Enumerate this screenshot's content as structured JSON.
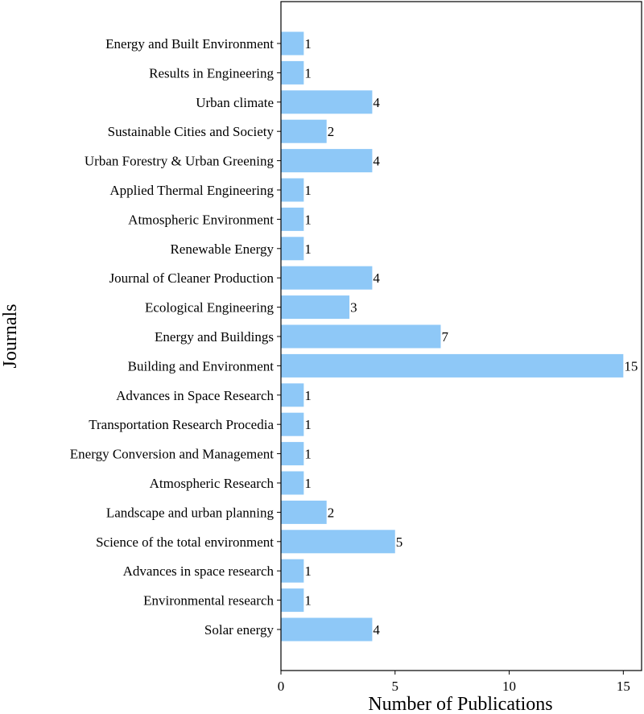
{
  "chart_data": {
    "type": "bar",
    "orientation": "horizontal",
    "xlabel": "Number of Publications",
    "ylabel": "Journals",
    "xlim": [
      0,
      15.8
    ],
    "xticks": [
      0,
      5,
      10,
      15
    ],
    "bar_color": "#8ec8f7",
    "grid": false,
    "categories": [
      "Energy and Built Environment",
      "Results in Engineering",
      "Urban climate",
      "Sustainable Cities and Society",
      "Urban Forestry & Urban Greening",
      "Applied Thermal Engineering",
      "Atmospheric Environment",
      "Renewable Energy",
      "Journal of Cleaner Production",
      "Ecological Engineering",
      "Energy and Buildings",
      "Building and Environment",
      "Advances in Space Research",
      "Transportation Research Procedia",
      "Energy Conversion and Management",
      "Atmospheric Research",
      "Landscape and urban planning",
      "Science of the total environment",
      "Advances in space research",
      "Environmental research",
      "Solar energy"
    ],
    "values": [
      1,
      1,
      4,
      2,
      4,
      1,
      1,
      1,
      4,
      3,
      7,
      15,
      1,
      1,
      1,
      1,
      2,
      5,
      1,
      1,
      4
    ]
  }
}
